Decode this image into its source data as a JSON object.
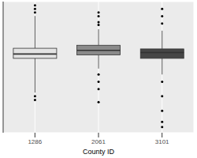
{
  "chart_data": {
    "type": "boxplot",
    "x_label": "County ID",
    "categories": [
      "1286",
      "2061",
      "3101"
    ],
    "boxes": [
      {
        "min": 3.06,
        "q1": 5.67,
        "median": 6.0,
        "q3": 6.44,
        "max": 8.9,
        "outliers": [
          9.72,
          9.44,
          9.17,
          2.78,
          2.5
        ]
      },
      {
        "min": 4.89,
        "q1": 5.94,
        "median": 6.28,
        "q3": 6.67,
        "max": 7.89,
        "outliers": [
          9.17,
          8.89,
          8.44,
          8.22,
          4.44,
          3.89,
          3.33,
          2.33
        ]
      },
      {
        "min": 4.44,
        "q1": 5.67,
        "median": 6.11,
        "q3": 6.39,
        "max": 7.78,
        "outliers": [
          9.44,
          8.89,
          8.33,
          3.89,
          2.78,
          1.67,
          0.83,
          0.44
        ]
      }
    ],
    "colors": [
      "#e3e3e3",
      "#8a8a8a",
      "#464646"
    ],
    "ylim": [
      0,
      10
    ],
    "yticks": [
      2,
      4,
      6,
      8
    ],
    "grid": true,
    "tick_labels": "x"
  }
}
